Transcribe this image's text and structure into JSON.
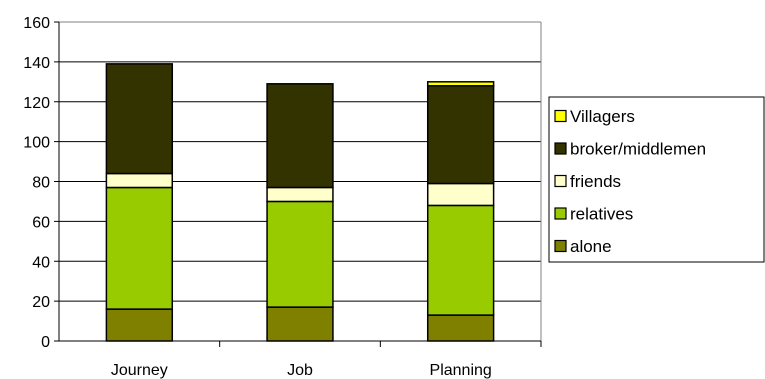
{
  "chart_data": {
    "type": "bar",
    "stacked": true,
    "categories": [
      "Journey",
      "Job",
      "Planning"
    ],
    "series": [
      {
        "name": "alone",
        "color": "#808000",
        "values": [
          16,
          17,
          13
        ]
      },
      {
        "name": "relatives",
        "color": "#99cc00",
        "values": [
          61,
          53,
          55
        ]
      },
      {
        "name": "friends",
        "color": "#ffffcc",
        "values": [
          7,
          7,
          11
        ]
      },
      {
        "name": "broker/middlemen",
        "color": "#333300",
        "values": [
          55,
          52,
          49
        ]
      },
      {
        "name": "Villagers",
        "color": "#ffff00",
        "values": [
          0,
          0,
          2
        ]
      }
    ],
    "ylim": [
      0,
      160
    ],
    "yticks": [
      0,
      20,
      40,
      60,
      80,
      100,
      120,
      140,
      160
    ],
    "grid": true,
    "legend": {
      "position": "right",
      "order": [
        "Villagers",
        "broker/middlemen",
        "friends",
        "relatives",
        "alone"
      ]
    }
  }
}
